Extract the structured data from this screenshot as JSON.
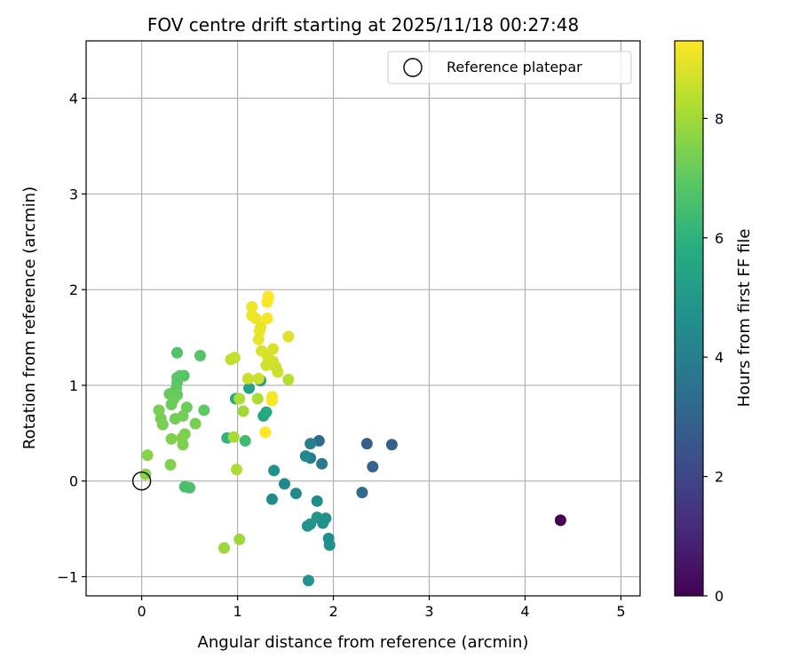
{
  "chart_data": {
    "type": "scatter",
    "title": "FOV centre drift starting at 2025/11/18 00:27:48",
    "xlabel": "Angular distance from reference (arcmin)",
    "ylabel": "Rotation from reference (arcmin)",
    "xlim": [
      -0.58,
      5.2
    ],
    "ylim": [
      -1.2,
      4.6
    ],
    "xticks": [
      0,
      1,
      2,
      3,
      4,
      5
    ],
    "yticks": [
      -1,
      0,
      1,
      2,
      3,
      4
    ],
    "grid": true,
    "legend": {
      "position": "top-right",
      "entries": [
        "Reference platepar"
      ]
    },
    "reference_point": {
      "x": 0,
      "y": 0,
      "label": "Reference platepar"
    },
    "colorbar": {
      "label": "Hours from first FF file",
      "min": 0,
      "max": 9.3,
      "ticks": [
        0,
        2,
        4,
        6,
        8
      ],
      "colormap": "viridis"
    },
    "points": [
      {
        "x": 4.37,
        "y": -0.41,
        "h": 0.0
      },
      {
        "x": 2.35,
        "y": 0.39,
        "h": 2.9
      },
      {
        "x": 2.61,
        "y": 0.38,
        "h": 2.9
      },
      {
        "x": 2.41,
        "y": 0.15,
        "h": 3.0
      },
      {
        "x": 2.3,
        "y": -0.12,
        "h": 3.3
      },
      {
        "x": 1.85,
        "y": 0.42,
        "h": 3.3
      },
      {
        "x": 1.88,
        "y": 0.18,
        "h": 3.8
      },
      {
        "x": 1.76,
        "y": 0.24,
        "h": 3.9
      },
      {
        "x": 1.76,
        "y": 0.39,
        "h": 4.1
      },
      {
        "x": 1.71,
        "y": 0.26,
        "h": 4.3
      },
      {
        "x": 1.49,
        "y": -0.03,
        "h": 4.3
      },
      {
        "x": 1.61,
        "y": -0.13,
        "h": 4.4
      },
      {
        "x": 1.36,
        "y": -0.19,
        "h": 4.5
      },
      {
        "x": 1.83,
        "y": -0.21,
        "h": 4.5
      },
      {
        "x": 1.38,
        "y": 0.11,
        "h": 4.7
      },
      {
        "x": 1.95,
        "y": -0.6,
        "h": 4.6
      },
      {
        "x": 1.96,
        "y": -0.67,
        "h": 4.6
      },
      {
        "x": 1.92,
        "y": -0.39,
        "h": 4.7
      },
      {
        "x": 1.89,
        "y": -0.44,
        "h": 4.7
      },
      {
        "x": 1.83,
        "y": -0.38,
        "h": 4.8
      },
      {
        "x": 1.76,
        "y": -0.45,
        "h": 4.9
      },
      {
        "x": 1.73,
        "y": -0.47,
        "h": 4.8
      },
      {
        "x": 1.74,
        "y": -1.04,
        "h": 4.8
      },
      {
        "x": 1.24,
        "y": 1.05,
        "h": 5.0
      },
      {
        "x": 1.12,
        "y": 0.97,
        "h": 5.3
      },
      {
        "x": 1.27,
        "y": 0.68,
        "h": 5.5
      },
      {
        "x": 1.3,
        "y": 0.72,
        "h": 5.6
      },
      {
        "x": 0.98,
        "y": 0.86,
        "h": 5.8
      },
      {
        "x": 0.89,
        "y": 0.45,
        "h": 6.1
      },
      {
        "x": 1.08,
        "y": 0.42,
        "h": 6.4
      },
      {
        "x": 0.45,
        "y": -0.06,
        "h": 6.6
      },
      {
        "x": 0.5,
        "y": -0.07,
        "h": 6.6
      },
      {
        "x": 0.37,
        "y": 1.34,
        "h": 6.7
      },
      {
        "x": 0.61,
        "y": 1.31,
        "h": 6.8
      },
      {
        "x": 0.44,
        "y": 1.1,
        "h": 6.8
      },
      {
        "x": 0.37,
        "y": 1.08,
        "h": 6.9
      },
      {
        "x": 0.4,
        "y": 1.1,
        "h": 6.9
      },
      {
        "x": 0.37,
        "y": 1.03,
        "h": 6.9
      },
      {
        "x": 0.36,
        "y": 0.97,
        "h": 7.0
      },
      {
        "x": 0.33,
        "y": 0.91,
        "h": 7.0
      },
      {
        "x": 0.29,
        "y": 0.91,
        "h": 7.1
      },
      {
        "x": 0.37,
        "y": 0.9,
        "h": 7.1
      },
      {
        "x": 0.31,
        "y": 0.8,
        "h": 7.2
      },
      {
        "x": 0.33,
        "y": 0.85,
        "h": 7.2
      },
      {
        "x": 0.65,
        "y": 0.74,
        "h": 7.0
      },
      {
        "x": 0.47,
        "y": 0.77,
        "h": 7.2
      },
      {
        "x": 0.43,
        "y": 0.68,
        "h": 7.3
      },
      {
        "x": 0.35,
        "y": 0.65,
        "h": 7.3
      },
      {
        "x": 0.2,
        "y": 0.65,
        "h": 7.3
      },
      {
        "x": 0.18,
        "y": 0.74,
        "h": 7.4
      },
      {
        "x": 0.22,
        "y": 0.59,
        "h": 7.4
      },
      {
        "x": 0.56,
        "y": 0.6,
        "h": 7.4
      },
      {
        "x": 0.45,
        "y": 0.49,
        "h": 7.4
      },
      {
        "x": 0.42,
        "y": 0.45,
        "h": 7.5
      },
      {
        "x": 0.31,
        "y": 0.44,
        "h": 7.5
      },
      {
        "x": 0.43,
        "y": 0.38,
        "h": 7.5
      },
      {
        "x": 0.3,
        "y": 0.17,
        "h": 7.5
      },
      {
        "x": 0.06,
        "y": 0.27,
        "h": 7.6
      },
      {
        "x": 0.04,
        "y": 0.07,
        "h": 7.6
      },
      {
        "x": 0.86,
        "y": -0.7,
        "h": 7.9
      },
      {
        "x": 1.02,
        "y": -0.61,
        "h": 7.9
      },
      {
        "x": 1.06,
        "y": 0.73,
        "h": 8.0
      },
      {
        "x": 0.96,
        "y": 0.46,
        "h": 8.1
      },
      {
        "x": 0.99,
        "y": 0.12,
        "h": 8.2
      },
      {
        "x": 1.02,
        "y": 0.86,
        "h": 8.2
      },
      {
        "x": 1.21,
        "y": 0.86,
        "h": 8.2
      },
      {
        "x": 1.53,
        "y": 1.06,
        "h": 8.3
      },
      {
        "x": 0.93,
        "y": 1.27,
        "h": 8.4
      },
      {
        "x": 0.97,
        "y": 1.29,
        "h": 8.5
      },
      {
        "x": 1.11,
        "y": 1.07,
        "h": 8.6
      },
      {
        "x": 1.22,
        "y": 1.07,
        "h": 8.6
      },
      {
        "x": 1.42,
        "y": 1.14,
        "h": 8.6
      },
      {
        "x": 1.4,
        "y": 1.19,
        "h": 8.6
      },
      {
        "x": 1.3,
        "y": 1.21,
        "h": 8.7
      },
      {
        "x": 1.37,
        "y": 1.25,
        "h": 8.7
      },
      {
        "x": 1.37,
        "y": 1.38,
        "h": 8.8
      },
      {
        "x": 1.25,
        "y": 1.36,
        "h": 8.8
      },
      {
        "x": 1.31,
        "y": 1.31,
        "h": 8.8
      },
      {
        "x": 1.53,
        "y": 1.51,
        "h": 8.9
      },
      {
        "x": 1.22,
        "y": 1.48,
        "h": 9.0
      },
      {
        "x": 1.23,
        "y": 1.57,
        "h": 9.0
      },
      {
        "x": 1.24,
        "y": 1.61,
        "h": 9.0
      },
      {
        "x": 1.19,
        "y": 1.7,
        "h": 9.1
      },
      {
        "x": 1.15,
        "y": 1.73,
        "h": 9.1
      },
      {
        "x": 1.15,
        "y": 1.82,
        "h": 9.1
      },
      {
        "x": 1.31,
        "y": 1.7,
        "h": 9.2
      },
      {
        "x": 1.31,
        "y": 1.87,
        "h": 9.2
      },
      {
        "x": 1.32,
        "y": 1.91,
        "h": 9.2
      },
      {
        "x": 1.32,
        "y": 1.93,
        "h": 9.3
      },
      {
        "x": 1.36,
        "y": 0.84,
        "h": 9.2
      },
      {
        "x": 1.36,
        "y": 0.88,
        "h": 9.2
      },
      {
        "x": 1.29,
        "y": 0.51,
        "h": 9.3
      }
    ]
  }
}
